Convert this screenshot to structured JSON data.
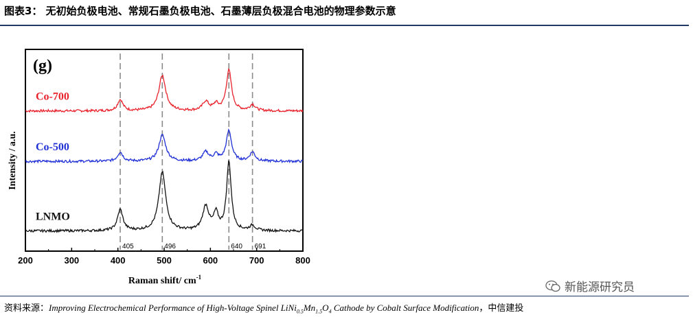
{
  "title": "图表3： 无初始负极电池、常规石墨负极电池、石墨薄层负极混合电池的物理参数示意",
  "source": {
    "prefix": "资料来源：",
    "text_a": "Improving Electrochemical Performance of High-Voltage Spinel LiNi",
    "sub1": "0.5",
    "text_b": "Mn",
    "sub2": "1.5",
    "text_c": "O",
    "sub3": "4",
    "text_d": " Cathode by Cobalt Surface Modification",
    "suffix": "，中信建投"
  },
  "watermark": {
    "icon": "wechat-icon",
    "text": "新能源研究员"
  },
  "chart_data": {
    "type": "line",
    "panel_label": "(g)",
    "xlabel": "Raman shift/ cm",
    "xlabel_sup": "-1",
    "ylabel": "Intensity / a.u.",
    "xlim": [
      200,
      800
    ],
    "xticks": [
      200,
      300,
      400,
      500,
      600,
      700,
      800
    ],
    "ylim": [
      0,
      10
    ],
    "grid": false,
    "reference_lines": [
      {
        "x": 405,
        "label": "405"
      },
      {
        "x": 496,
        "label": "496"
      },
      {
        "x": 640,
        "label": "640"
      },
      {
        "x": 691,
        "label": "691"
      }
    ],
    "series": [
      {
        "name": "Co-700",
        "color": "#e8212b",
        "baseline": 6.95,
        "peaks": [
          {
            "x": 405,
            "h": 0.55,
            "w": 7
          },
          {
            "x": 496,
            "h": 1.75,
            "w": 9
          },
          {
            "x": 590,
            "h": 0.45,
            "w": 8
          },
          {
            "x": 612,
            "h": 0.3,
            "w": 6
          },
          {
            "x": 640,
            "h": 2.0,
            "w": 7
          },
          {
            "x": 691,
            "h": 0.3,
            "w": 7
          }
        ]
      },
      {
        "name": "Co-500",
        "color": "#1f2fd6",
        "baseline": 4.45,
        "peaks": [
          {
            "x": 405,
            "h": 0.45,
            "w": 7
          },
          {
            "x": 496,
            "h": 1.3,
            "w": 9
          },
          {
            "x": 590,
            "h": 0.45,
            "w": 8
          },
          {
            "x": 612,
            "h": 0.3,
            "w": 6
          },
          {
            "x": 640,
            "h": 1.5,
            "w": 7
          },
          {
            "x": 691,
            "h": 0.45,
            "w": 7
          }
        ]
      },
      {
        "name": "LNMO",
        "color": "#111111",
        "baseline": 1.0,
        "peaks": [
          {
            "x": 405,
            "h": 1.05,
            "w": 7
          },
          {
            "x": 496,
            "h": 2.9,
            "w": 9
          },
          {
            "x": 590,
            "h": 1.2,
            "w": 8
          },
          {
            "x": 612,
            "h": 0.8,
            "w": 6
          },
          {
            "x": 640,
            "h": 3.4,
            "w": 6
          },
          {
            "x": 691,
            "h": 0.25,
            "w": 7
          }
        ]
      }
    ]
  }
}
